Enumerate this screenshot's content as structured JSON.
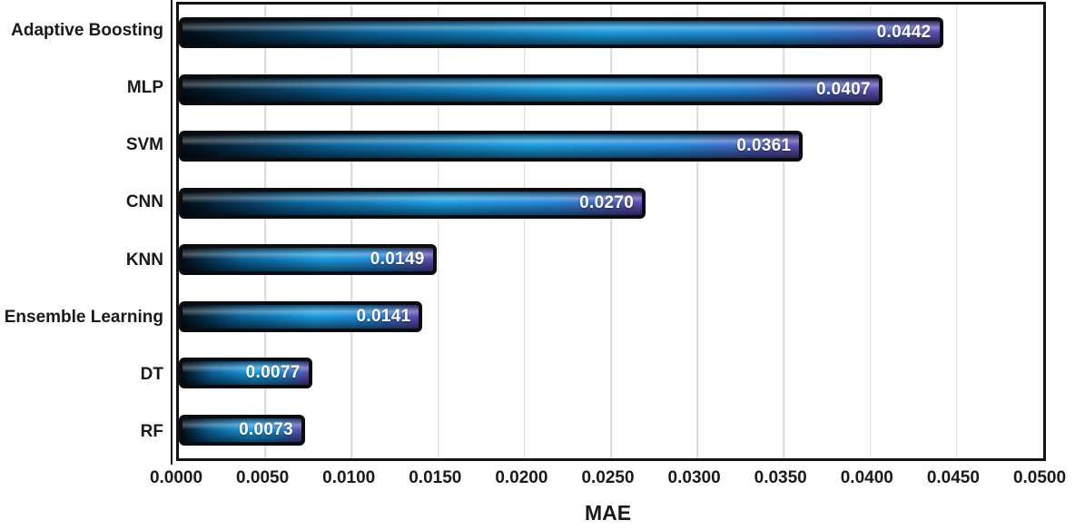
{
  "chart_data": {
    "type": "bar",
    "orientation": "horizontal",
    "title": "",
    "xlabel": "MAE",
    "ylabel": "",
    "categories": [
      "Adaptive Boosting",
      "MLP",
      "SVM",
      "CNN",
      "KNN",
      "Ensemble Learning",
      "DT",
      "RF"
    ],
    "values": [
      0.0442,
      0.0407,
      0.0361,
      0.027,
      0.0149,
      0.0141,
      0.0077,
      0.0073
    ],
    "value_labels": [
      "0.0442",
      "0.0407",
      "0.0361",
      "0.0270",
      "0.0149",
      "0.0141",
      "0.0077",
      "0.0073"
    ],
    "xlim": [
      0,
      0.05
    ],
    "x_ticks": [
      "0.0000",
      "0.0050",
      "0.0100",
      "0.0150",
      "0.0200",
      "0.0250",
      "0.0300",
      "0.0350",
      "0.0400",
      "0.0450",
      "0.0500"
    ],
    "grid": "vertical-gridlines-on",
    "legend": "none",
    "colors": {
      "background": "#ffffff",
      "plot_border": "#141414",
      "gridline": "#d9d9d9",
      "axis_text": "#1a1a1a",
      "bar_border": "#0b0b12",
      "bar_gradient": [
        "#020d16",
        "#0a6098",
        "#1b9de0",
        "#2386d6",
        "#5a4fb2"
      ],
      "value_label_text": "#ffffff"
    }
  }
}
